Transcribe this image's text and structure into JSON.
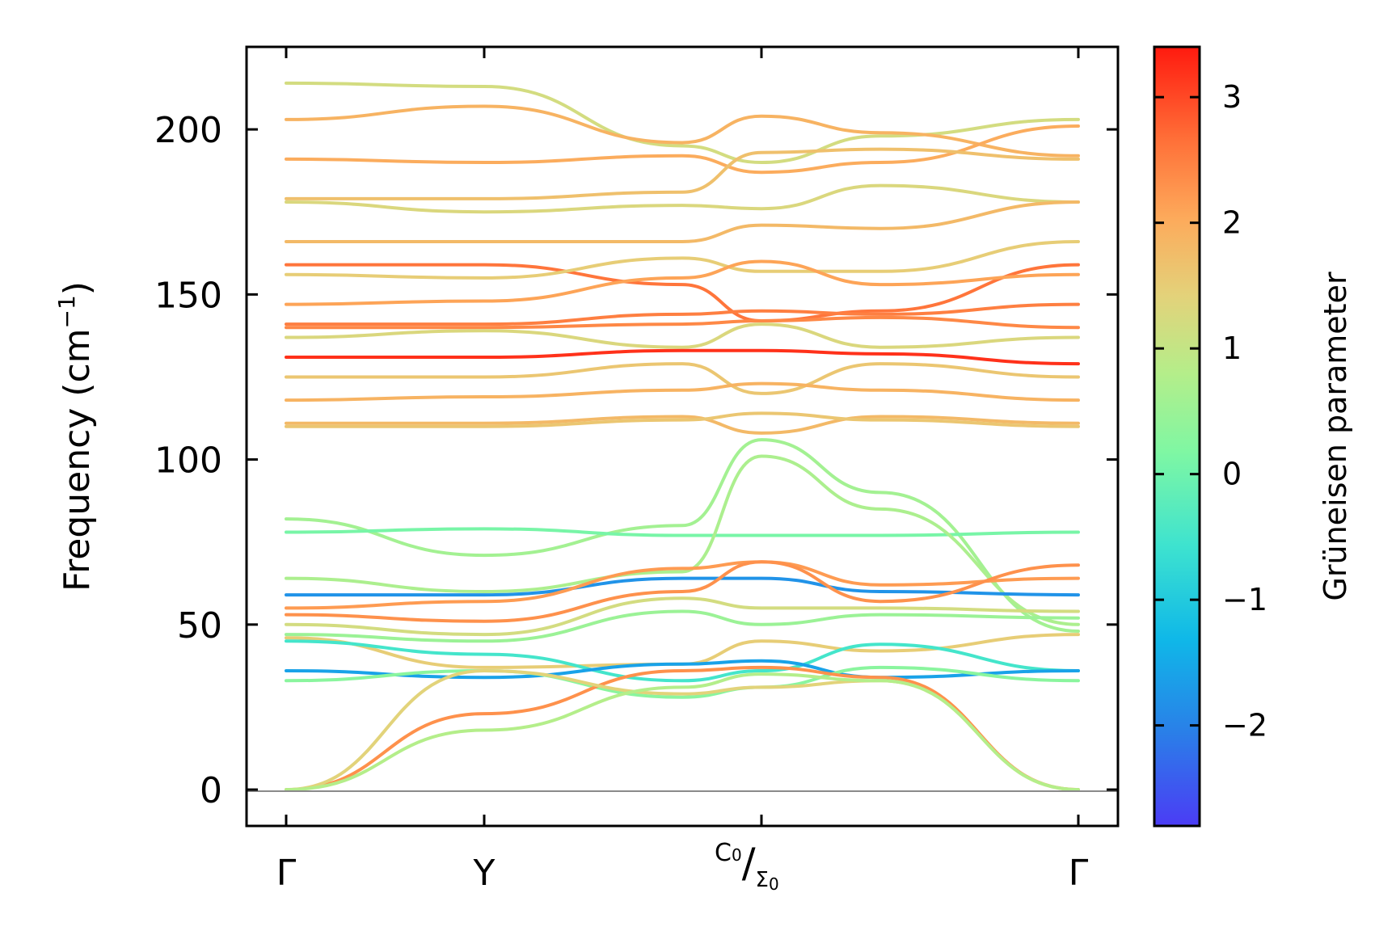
{
  "chart_data": {
    "type": "line",
    "ylabel": "Frequency (cm",
    "ylabel_sup": "−1",
    "ylabel_close": ")",
    "ylim": [
      -11,
      225
    ],
    "yticks": [
      0,
      50,
      100,
      150,
      200
    ],
    "xticks": [
      {
        "label": "Γ",
        "x": 0
      },
      {
        "label": "Y",
        "x": 1
      },
      {
        "label": "C",
        "sub": "0",
        "label2": "Σ",
        "sub2": "0",
        "x": 2.4,
        "composite": true
      },
      {
        "label": "Γ",
        "x": 4
      }
    ],
    "xlim": [
      -0.2,
      4.2
    ],
    "colorbar": {
      "label": "Grüneisen parameter",
      "range": [
        -2.8,
        3.4
      ],
      "ticks": [
        3,
        2,
        1,
        0,
        -1,
        -2
      ],
      "tick_labels": [
        "3",
        "2",
        "1",
        "0",
        "−1",
        "−2"
      ]
    },
    "series": [
      {
        "name": "band-01",
        "x": [
          0,
          1,
          2,
          2.4,
          3,
          4
        ],
        "y": [
          214,
          213,
          195,
          190,
          198,
          203
        ],
        "g": 1.2
      },
      {
        "name": "band-02",
        "x": [
          0,
          1,
          2,
          2.4,
          3,
          4
        ],
        "y": [
          203,
          207,
          196,
          204,
          199,
          192
        ],
        "g": 1.9
      },
      {
        "name": "band-03",
        "x": [
          0,
          1,
          2,
          2.4,
          3,
          4
        ],
        "y": [
          191,
          190,
          192,
          187,
          190,
          201
        ],
        "g": 2.0
      },
      {
        "name": "band-04",
        "x": [
          0,
          1,
          2,
          2.4,
          3,
          4
        ],
        "y": [
          179,
          179,
          181,
          193,
          194,
          191
        ],
        "g": 1.7
      },
      {
        "name": "band-05",
        "x": [
          0,
          1,
          2,
          2.4,
          3,
          4
        ],
        "y": [
          178,
          175,
          177,
          176,
          183,
          178
        ],
        "g": 1.3
      },
      {
        "name": "band-06",
        "x": [
          0,
          1,
          2,
          2.4,
          3,
          4
        ],
        "y": [
          166,
          166,
          166,
          171,
          170,
          178
        ],
        "g": 1.8
      },
      {
        "name": "band-07",
        "x": [
          0,
          1,
          2,
          2.4,
          3,
          4
        ],
        "y": [
          159,
          159,
          153,
          142,
          145,
          159
        ],
        "g": 2.6
      },
      {
        "name": "band-08",
        "x": [
          0,
          1,
          2,
          2.4,
          3,
          4
        ],
        "y": [
          156,
          155,
          161,
          157,
          157,
          166
        ],
        "g": 1.5
      },
      {
        "name": "band-09",
        "x": [
          0,
          1,
          2,
          2.4,
          3,
          4
        ],
        "y": [
          147,
          148,
          155,
          160,
          153,
          156
        ],
        "g": 2.1
      },
      {
        "name": "band-10",
        "x": [
          0,
          1,
          2,
          2.4,
          3,
          4
        ],
        "y": [
          141,
          141,
          144,
          145,
          144,
          147
        ],
        "g": 2.5
      },
      {
        "name": "band-11",
        "x": [
          0,
          1,
          2,
          2.4,
          3,
          4
        ],
        "y": [
          140,
          140,
          141,
          142,
          143,
          140
        ],
        "g": 2.4
      },
      {
        "name": "band-12",
        "x": [
          0,
          1,
          2,
          2.4,
          3,
          4
        ],
        "y": [
          137,
          139,
          134,
          141,
          134,
          137
        ],
        "g": 1.3
      },
      {
        "name": "band-13",
        "x": [
          0,
          1,
          2,
          2.4,
          3,
          4
        ],
        "y": [
          131,
          131,
          133,
          133,
          132,
          129
        ],
        "g": 3.2
      },
      {
        "name": "band-14",
        "x": [
          0,
          1,
          2,
          2.4,
          3,
          4
        ],
        "y": [
          125,
          125,
          129,
          120,
          129,
          125
        ],
        "g": 1.6
      },
      {
        "name": "band-15",
        "x": [
          0,
          1,
          2,
          2.4,
          3,
          4
        ],
        "y": [
          118,
          119,
          121,
          123,
          121,
          118
        ],
        "g": 1.9
      },
      {
        "name": "band-16",
        "x": [
          0,
          1,
          2,
          2.4,
          3,
          4
        ],
        "y": [
          111,
          111,
          113,
          108,
          113,
          111
        ],
        "g": 1.8
      },
      {
        "name": "band-17",
        "x": [
          0,
          1,
          2,
          2.4,
          3,
          4
        ],
        "y": [
          110,
          110,
          112,
          114,
          112,
          110
        ],
        "g": 1.6
      },
      {
        "name": "band-18",
        "x": [
          0,
          1,
          2,
          2.4,
          3,
          4
        ],
        "y": [
          82,
          71,
          80,
          106,
          90,
          48
        ],
        "g": 0.6
      },
      {
        "name": "band-19",
        "x": [
          0,
          1,
          2,
          2.4,
          3,
          4
        ],
        "y": [
          78,
          79,
          77,
          77,
          77,
          78
        ],
        "g": 0.1
      },
      {
        "name": "band-20",
        "x": [
          0,
          1,
          2,
          2.4,
          3,
          4
        ],
        "y": [
          64,
          60,
          66,
          101,
          85,
          50
        ],
        "g": 0.7
      },
      {
        "name": "band-21",
        "x": [
          0,
          1,
          2,
          2.4,
          3,
          4
        ],
        "y": [
          59,
          59,
          64,
          64,
          60,
          59
        ],
        "g": -1.8
      },
      {
        "name": "band-22",
        "x": [
          0,
          1,
          2,
          2.4,
          3,
          4
        ],
        "y": [
          55,
          57,
          67,
          69,
          62,
          64
        ],
        "g": 2.2
      },
      {
        "name": "band-23",
        "x": [
          0,
          1,
          2,
          2.4,
          3,
          4
        ],
        "y": [
          53,
          51,
          60,
          69,
          57,
          68
        ],
        "g": 2.3
      },
      {
        "name": "band-24",
        "x": [
          0,
          1,
          2,
          2.4,
          3,
          4
        ],
        "y": [
          50,
          47,
          58,
          55,
          55,
          54
        ],
        "g": 1.2
      },
      {
        "name": "band-25",
        "x": [
          0,
          1,
          2,
          2.4,
          3,
          4
        ],
        "y": [
          47,
          45,
          54,
          50,
          53,
          52
        ],
        "g": 0.5
      },
      {
        "name": "band-26",
        "x": [
          0,
          1,
          2,
          2.4,
          3,
          4
        ],
        "y": [
          46,
          37,
          38,
          45,
          42,
          47
        ],
        "g": 1.5
      },
      {
        "name": "band-27",
        "x": [
          0,
          1,
          2,
          2.4,
          3,
          4
        ],
        "y": [
          45,
          41,
          33,
          36,
          44,
          36
        ],
        "g": -0.5
      },
      {
        "name": "band-28",
        "x": [
          0,
          1,
          2,
          2.4,
          3,
          4
        ],
        "y": [
          36,
          34,
          38,
          39,
          34,
          36
        ],
        "g": -1.6
      },
      {
        "name": "band-29",
        "x": [
          0,
          1,
          2,
          2.4,
          3,
          4
        ],
        "y": [
          33,
          36,
          28,
          31,
          37,
          33
        ],
        "g": 0.3
      },
      {
        "name": "band-30",
        "x": [
          0,
          1,
          2,
          2.4,
          3,
          4
        ],
        "y": [
          0,
          23,
          36,
          37,
          34,
          0
        ],
        "g": 2.3
      },
      {
        "name": "band-31",
        "x": [
          0,
          1,
          2,
          2.4,
          3,
          4
        ],
        "y": [
          0,
          36,
          29,
          31,
          33,
          0
        ],
        "g": 1.4
      },
      {
        "name": "band-32",
        "x": [
          0,
          1,
          2,
          2.4,
          3,
          4
        ],
        "y": [
          0,
          18,
          31,
          35,
          33,
          0
        ],
        "g": 0.8
      }
    ]
  }
}
